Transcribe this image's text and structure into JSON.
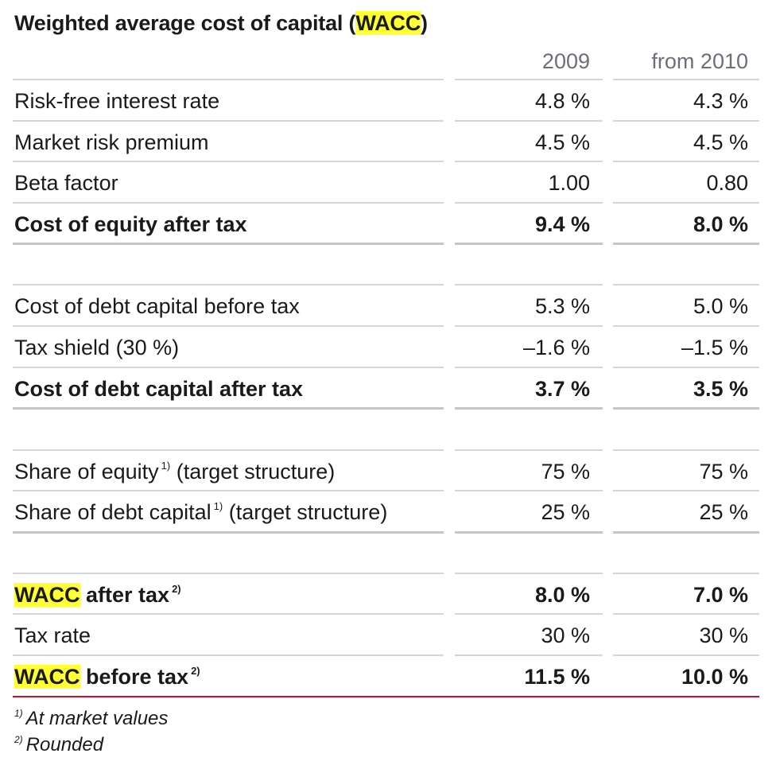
{
  "title": {
    "prefix": "Weighted average cost of capital (",
    "highlight": "WACC",
    "suffix": ")"
  },
  "columns": [
    "2009",
    "from 2010"
  ],
  "rows": [
    {
      "label": "Risk-free interest rate",
      "v2009": "4.8 %",
      "v2010": "4.3 %"
    },
    {
      "label": "Market risk premium",
      "v2009": "4.5 %",
      "v2010": "4.5 %"
    },
    {
      "label": "Beta factor",
      "v2009": "1.00",
      "v2010": "0.80"
    },
    {
      "label": "Cost of equity after tax",
      "v2009": "9.4 %",
      "v2010": "8.0 %"
    },
    {
      "label": "Cost of debt capital before tax",
      "v2009": "5.3 %",
      "v2010": "5.0 %"
    },
    {
      "label": "Tax shield (30 %)",
      "v2009": "–1.6 %",
      "v2010": "–1.5 %"
    },
    {
      "label": "Cost of debt capital after tax",
      "v2009": "3.7 %",
      "v2010": "3.5 %"
    },
    {
      "label": "Share of equity",
      "sup": "1)",
      "label_suffix": "(target structure)",
      "v2009": "75 %",
      "v2010": "75 %"
    },
    {
      "label": "Share of debt capital",
      "sup": "1)",
      "label_suffix": "(target structure)",
      "v2009": "25 %",
      "v2010": "25 %"
    },
    {
      "label_highlight": "WACC",
      "label": "after tax",
      "sup": "2)",
      "v2009": "8.0 %",
      "v2010": "7.0 %"
    },
    {
      "label": "Tax rate",
      "v2009": "30 %",
      "v2010": "30 %"
    },
    {
      "label_highlight": "WACC",
      "label": "before tax",
      "sup": "2)",
      "v2009": "11.5 %",
      "v2010": "10.0 %"
    }
  ],
  "footnotes": [
    {
      "mark": "1)",
      "text": "At market values"
    },
    {
      "mark": "2)",
      "text": "Rounded"
    }
  ],
  "colors": {
    "highlight": "#ffff33",
    "rule": "#d3d5d9",
    "final_rule": "#c8102e",
    "header_text": "#6b6f78"
  }
}
